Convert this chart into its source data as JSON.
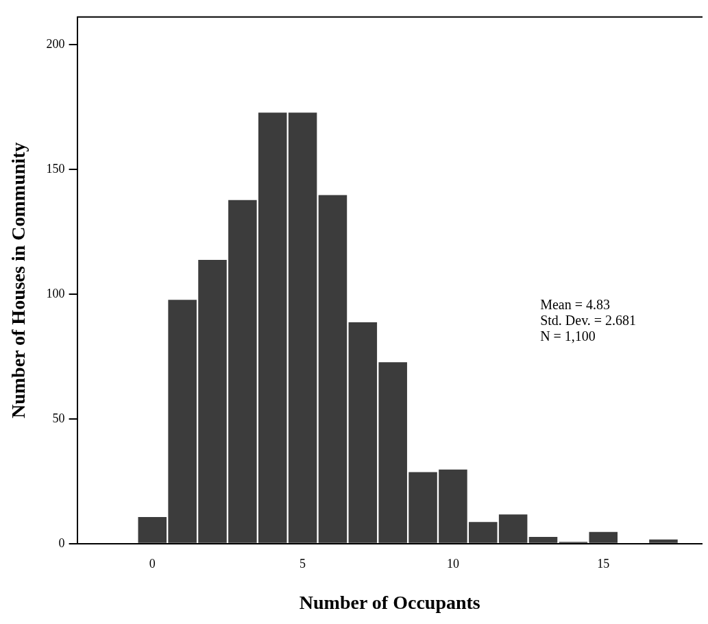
{
  "chart_data": {
    "type": "histogram",
    "xlabel": "Number of Occupants",
    "ylabel": "Number of Houses in Community",
    "bins": [
      -0.5,
      0.5,
      1.5,
      2.5,
      3.5,
      4.5,
      5.5,
      6.5,
      7.5,
      8.5,
      9.5,
      10.5,
      11.5,
      12.5,
      13.5,
      14.5,
      15.5,
      16.5,
      17.5
    ],
    "values": [
      11,
      98,
      114,
      138,
      173,
      173,
      140,
      89,
      73,
      29,
      30,
      9,
      12,
      3,
      1,
      5,
      0,
      2
    ],
    "color": "#3c3c3c",
    "xlim": [
      -2.5,
      18.3
    ],
    "xticks": [
      0,
      5,
      10,
      15
    ],
    "ylim": [
      0,
      211
    ],
    "yticks": [
      0,
      50,
      100,
      150,
      200
    ],
    "grid": false,
    "legend": false,
    "annotations": [
      "Mean = 4.83",
      "Std. Dev. = 2.681",
      "N = 1,100"
    ]
  }
}
